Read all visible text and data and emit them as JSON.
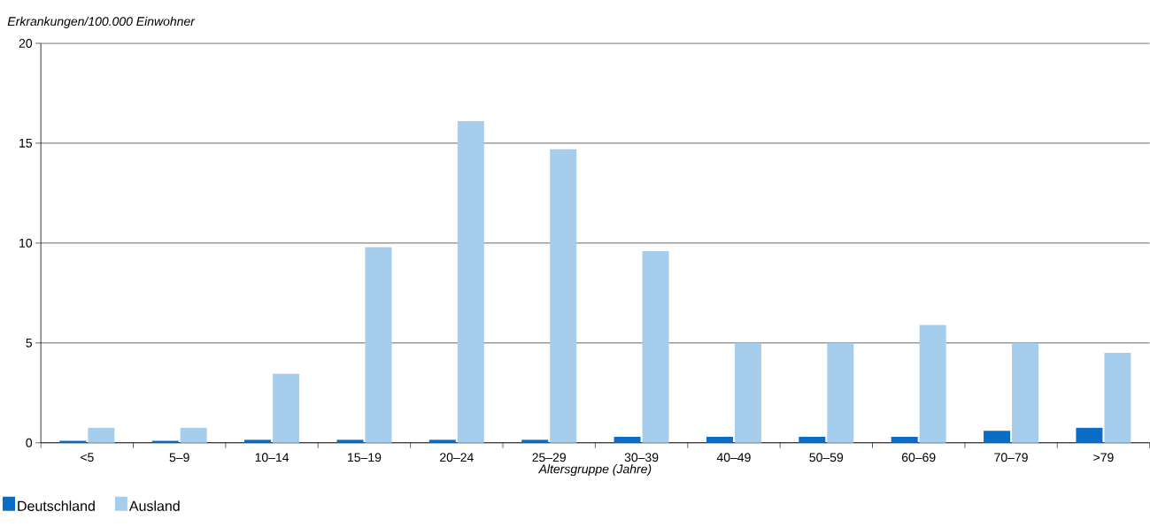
{
  "chart_data": {
    "type": "bar",
    "xlabel": "Altersgruppe (Jahre)",
    "ylabel": "Erkrankungen/100.000 Einwohner",
    "categories": [
      "<5",
      "5–9",
      "10–14",
      "15–19",
      "20–24",
      "25–29",
      "30–39",
      "40–49",
      "50–59",
      "60–69",
      "70–79",
      ">79"
    ],
    "series": [
      {
        "name": "Deutschland",
        "color": "#0a6cc4",
        "values": [
          0.1,
          0.1,
          0.15,
          0.15,
          0.15,
          0.15,
          0.3,
          0.3,
          0.3,
          0.3,
          0.6,
          0.75
        ]
      },
      {
        "name": "Ausland",
        "color": "#a6cdeb",
        "values": [
          0.75,
          0.75,
          3.45,
          9.8,
          16.1,
          14.7,
          9.6,
          5.0,
          5.0,
          5.9,
          5.0,
          4.5
        ]
      }
    ],
    "ylim": [
      0,
      20
    ],
    "yticks": [
      0,
      5,
      10,
      15,
      20
    ],
    "grid": "y",
    "legend": "bottom left"
  }
}
